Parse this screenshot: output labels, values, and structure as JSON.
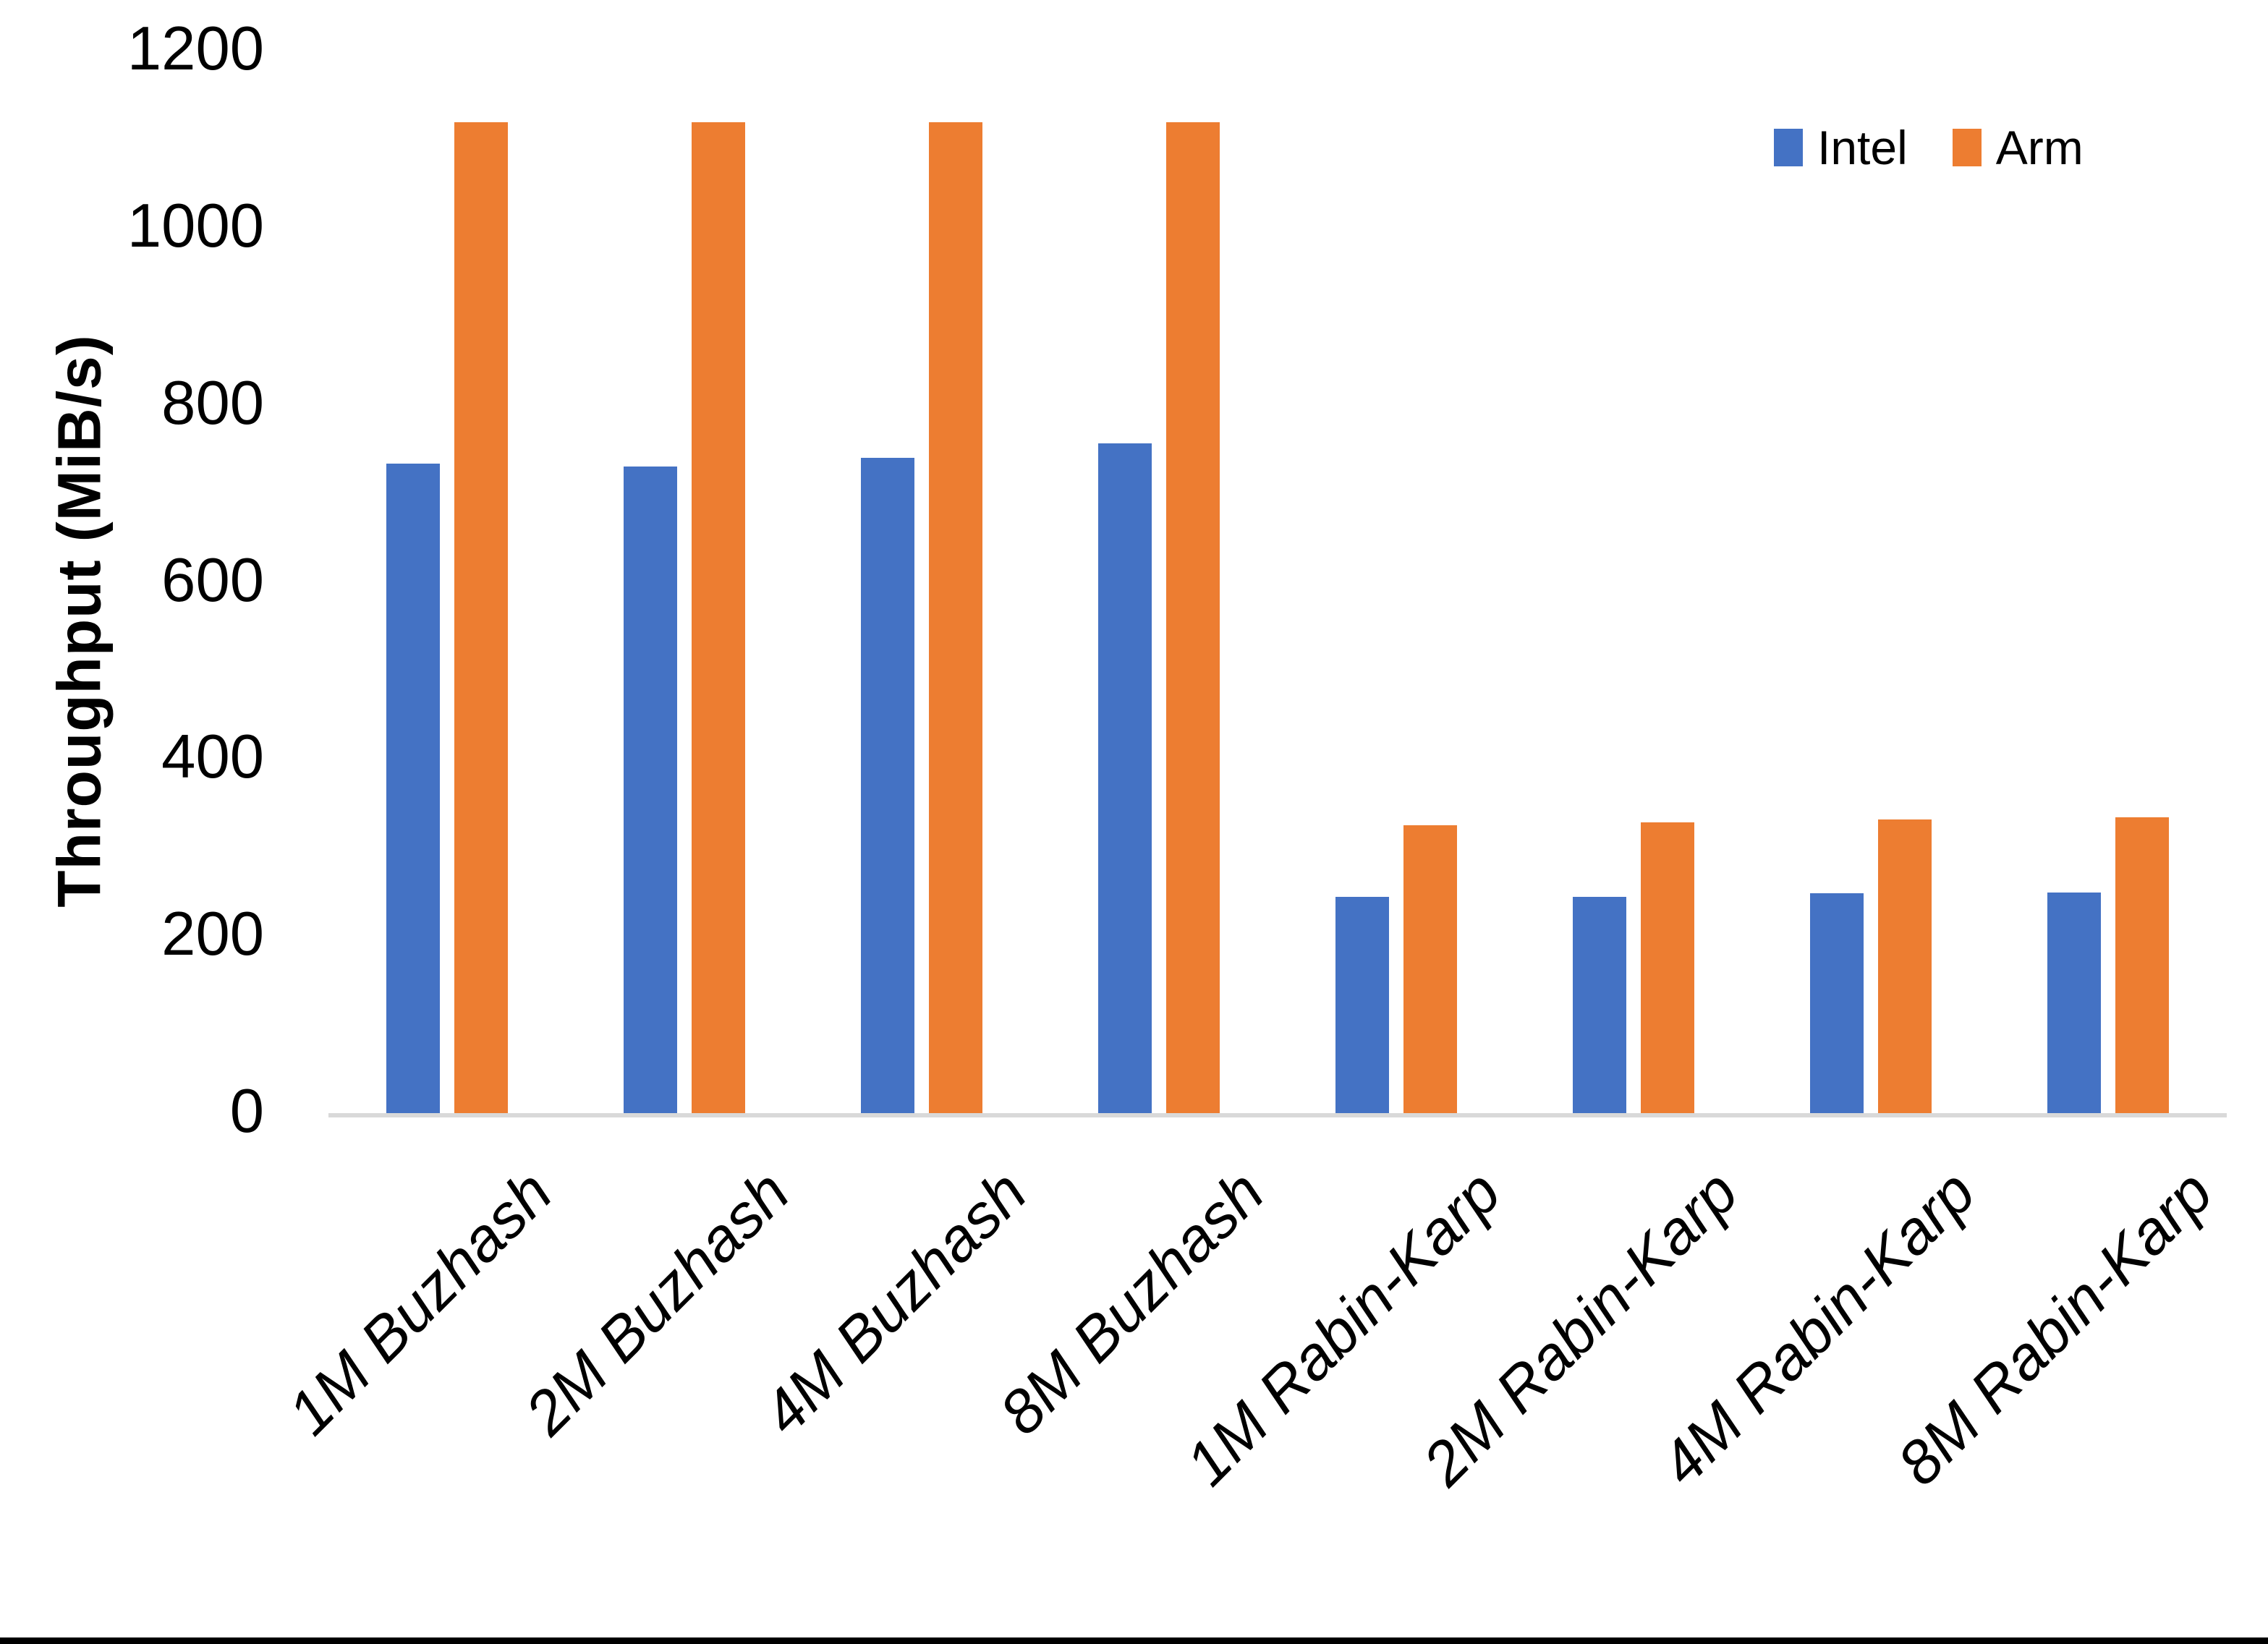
{
  "chart_data": {
    "type": "bar",
    "title": "",
    "xlabel": "",
    "ylabel": "Throughput (MiB/s)",
    "ylim": [
      0,
      1200
    ],
    "yticks": [
      0,
      200,
      400,
      600,
      800,
      1000,
      1200
    ],
    "grid": false,
    "legend_position": "top-right",
    "categories": [
      "1M Buzhash",
      "2M Buzhash",
      "4M Buzhash",
      "8M Buzhash",
      "1M Rabin-Karp",
      "2M Rabin-Karp",
      "4M Rabin-Karp",
      "8M Rabin-Karp"
    ],
    "series": [
      {
        "name": "Intel",
        "color": "#4472C4",
        "values": [
          735,
          732,
          742,
          758,
          246,
          246,
          250,
          251
        ]
      },
      {
        "name": "Arm",
        "color": "#ED7D31",
        "values": [
          1121,
          1121,
          1121,
          1121,
          327,
          330,
          333,
          336
        ]
      }
    ],
    "axis_line_color": "#D9D9D9",
    "text_color": "#000000"
  }
}
